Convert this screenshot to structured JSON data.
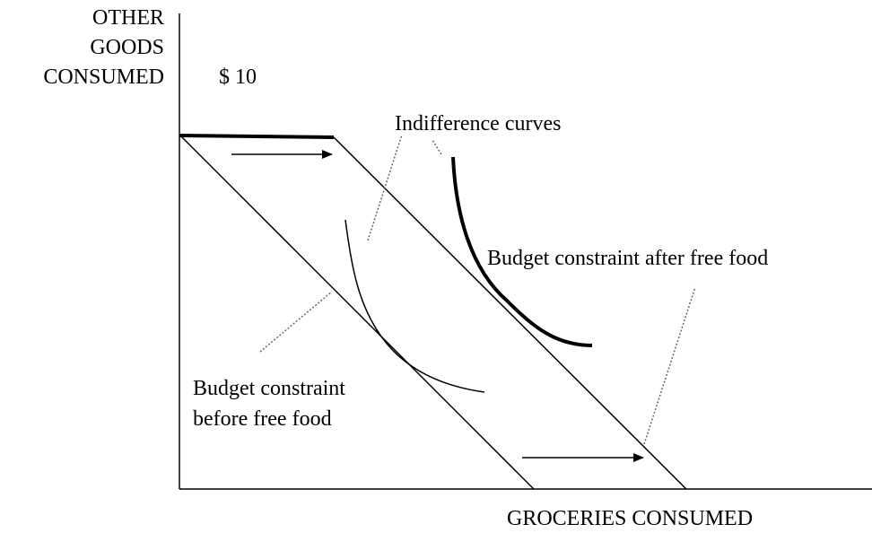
{
  "labels": {
    "y_axis": [
      "OTHER",
      "GOODS",
      "CONSUMED"
    ],
    "income": "$ 10",
    "indifference": "Indifference curves",
    "after": "Budget constraint after free food",
    "before": [
      "Budget constraint",
      "before free food"
    ],
    "x_axis": "GROCERIES CONSUMED"
  }
}
